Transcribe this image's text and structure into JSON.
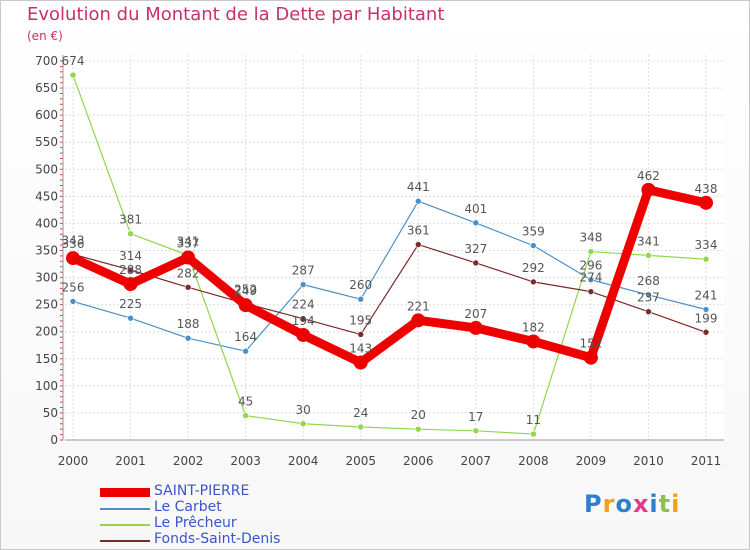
{
  "title": "Evolution du Montant de la Dette par Habitant",
  "subtitle": "(en €)",
  "logo": {
    "letters": [
      "P",
      "r",
      "o",
      "x",
      "i",
      "t",
      "i"
    ],
    "colors": [
      "#2f7fd0",
      "#f2a019",
      "#2f7fd0",
      "#e23a8c",
      "#2f7fd0",
      "#8bc34a",
      "#f2a019"
    ]
  },
  "chart_data": {
    "type": "line",
    "title": "Evolution du Montant de la Dette par Habitant",
    "subtitle": "(en €)",
    "xlabel": "",
    "ylabel": "",
    "categories": [
      "2000",
      "2001",
      "2002",
      "2003",
      "2004",
      "2005",
      "2006",
      "2007",
      "2008",
      "2009",
      "2010",
      "2011"
    ],
    "ylim": [
      0,
      700
    ],
    "yticks": [
      0,
      50,
      100,
      150,
      200,
      250,
      300,
      350,
      400,
      450,
      500,
      550,
      600,
      650,
      700
    ],
    "grid": true,
    "legend_position": "bottom-left",
    "series": [
      {
        "name": "SAINT-PIERRE",
        "color": "#ee0000",
        "values": [
          336,
          288,
          337,
          249,
          194,
          143,
          221,
          207,
          182,
          152,
          462,
          438
        ]
      },
      {
        "name": "Le Carbet",
        "color": "#4a90c8",
        "values": [
          256,
          225,
          188,
          164,
          287,
          260,
          441,
          401,
          359,
          296,
          268,
          241
        ]
      },
      {
        "name": "Le Prêcheur",
        "color": "#8ed84a",
        "values": [
          674,
          381,
          341,
          45,
          30,
          24,
          20,
          17,
          11,
          348,
          341,
          334
        ]
      },
      {
        "name": "Fonds-Saint-Denis",
        "color": "#7a2a2a",
        "values": [
          343,
          314,
          282,
          252,
          224,
          195,
          361,
          327,
          292,
          274,
          237,
          199
        ]
      }
    ]
  }
}
